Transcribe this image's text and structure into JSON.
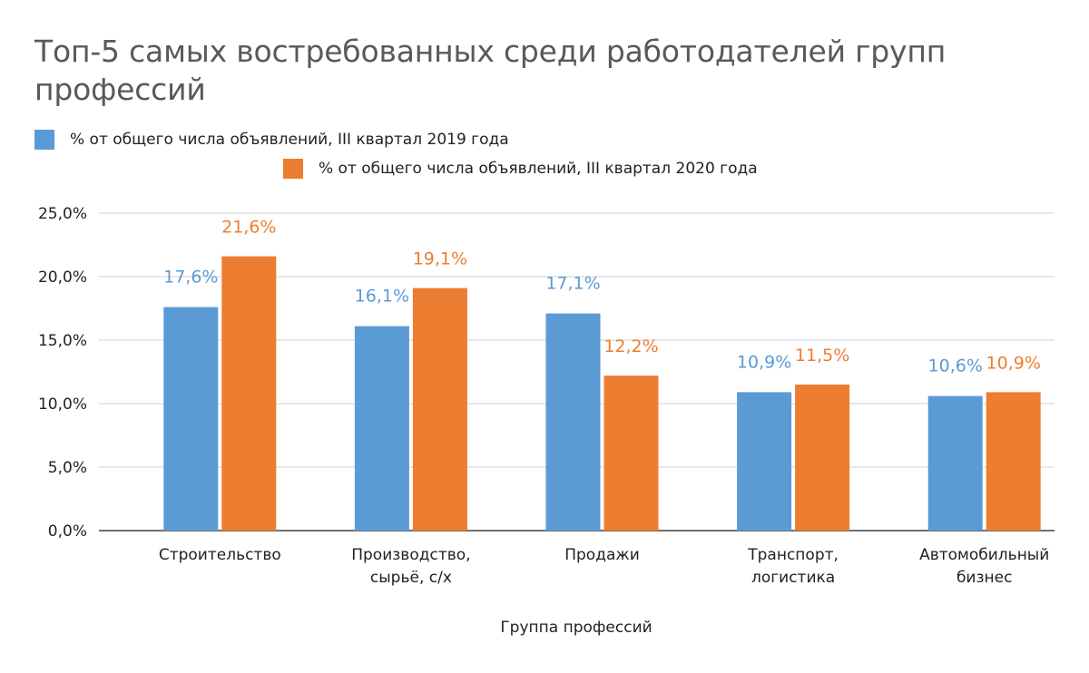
{
  "chart_data": {
    "type": "bar",
    "title": "Топ-5 самых востребованных среди работодателей групп профессий",
    "xlabel": "Группа профессий",
    "ylabel": "",
    "ylim": [
      0,
      25
    ],
    "yticks": [
      "0,0%",
      "5,0%",
      "10,0%",
      "15,0%",
      "20,0%",
      "25,0%"
    ],
    "grid": true,
    "legend_position": "top-left",
    "categories": [
      [
        "Строительство"
      ],
      [
        "Производство,",
        "сырьё, с/х"
      ],
      [
        "Продажи"
      ],
      [
        "Транспорт,",
        "логистика"
      ],
      [
        "Автомобильный",
        "бизнес"
      ]
    ],
    "series": [
      {
        "name": "% от общего числа объявлений, III квартал 2019 года",
        "color": "#5B9BD5",
        "values": [
          17.6,
          16.1,
          17.1,
          10.9,
          10.6
        ],
        "labels": [
          "17,6%",
          "16,1%",
          "17,1%",
          "10,9%",
          "10,6%"
        ]
      },
      {
        "name": "% от общего числа объявлений, III квартал 2020 года",
        "color": "#ED7D31",
        "values": [
          21.6,
          19.1,
          12.2,
          11.5,
          10.9
        ],
        "labels": [
          "21,6%",
          "19,1%",
          "12,2%",
          "11,5%",
          "10,9%"
        ]
      }
    ]
  }
}
